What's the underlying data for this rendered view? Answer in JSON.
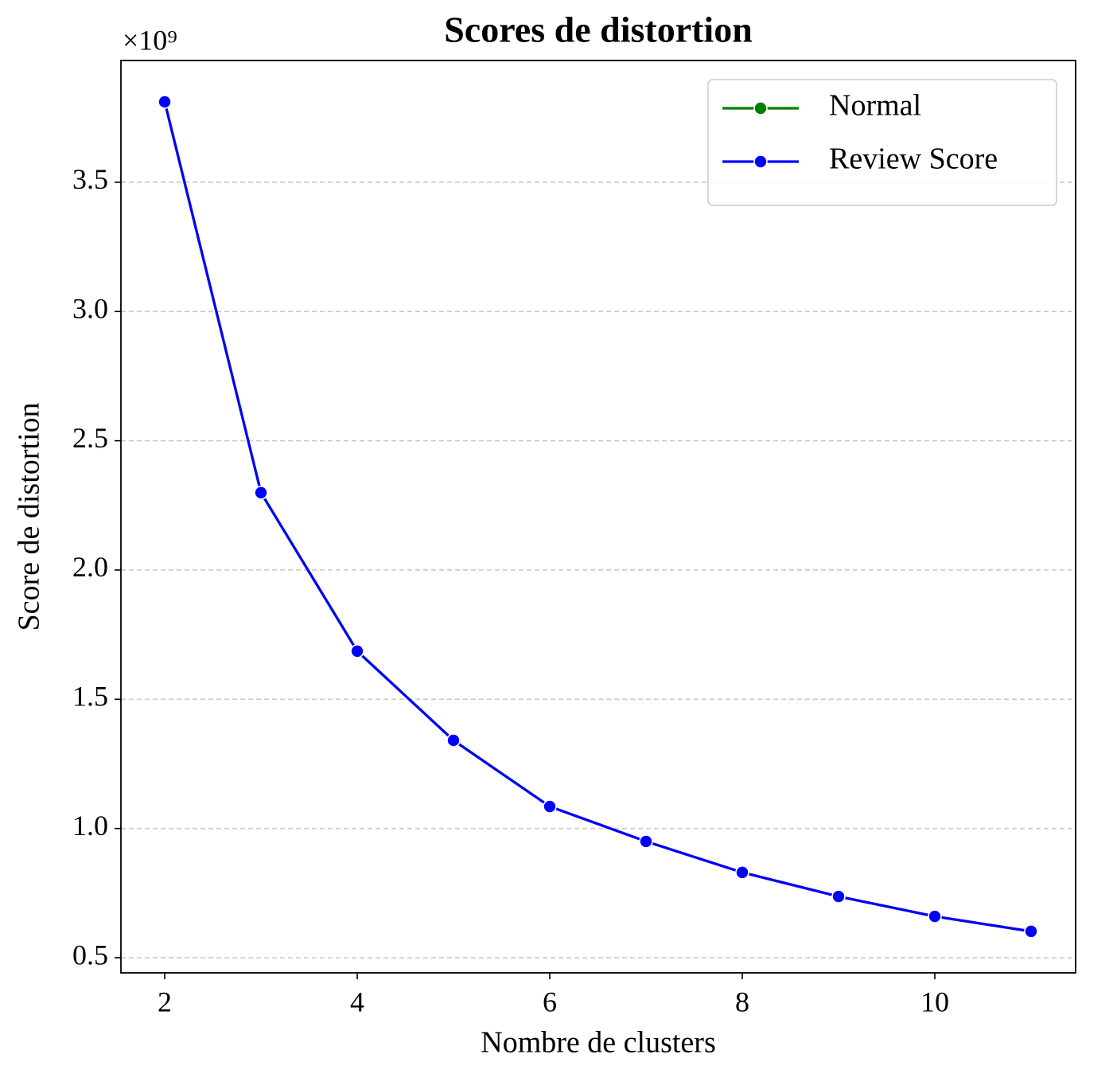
{
  "chart_data": {
    "type": "line",
    "title": "Scores de distortion",
    "xlabel": "Nombre de clusters",
    "ylabel": "Score de distortion",
    "y_offset_label": "×10⁹",
    "x": [
      2,
      3,
      4,
      5,
      6,
      7,
      8,
      9,
      10,
      11
    ],
    "series": [
      {
        "name": "Normal",
        "color": "#008000",
        "values": [
          3.811,
          2.299,
          1.686,
          1.341,
          1.085,
          0.95,
          0.83,
          0.737,
          0.66,
          0.602
        ]
      },
      {
        "name": "Review Score",
        "color": "#0000ff",
        "values": [
          3.811,
          2.299,
          1.686,
          1.341,
          1.085,
          0.95,
          0.83,
          0.737,
          0.66,
          0.602
        ]
      }
    ],
    "xlim": [
      1.545,
      11.463
    ],
    "ylim": [
      0.4415,
      3.971
    ],
    "xticks": [
      2,
      4,
      6,
      8,
      10
    ],
    "yticks": [
      0.5,
      {
        "value": 1,
        "label": "1.0"
      },
      1.5,
      {
        "value": 2,
        "label": "2.0"
      },
      2.5,
      {
        "value": 3,
        "label": "3.0"
      },
      3.5
    ],
    "grid": "y",
    "legend": "upper right"
  }
}
